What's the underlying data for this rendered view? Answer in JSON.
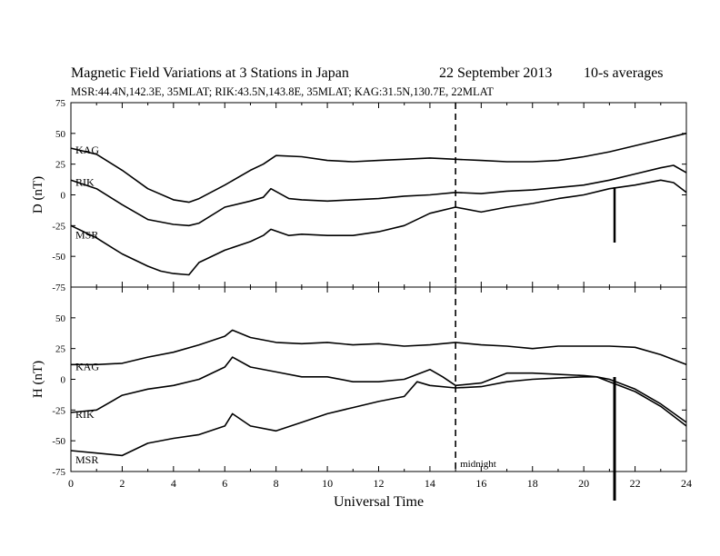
{
  "header": {
    "title": "Magnetic Field Variations at 3 Stations in Japan",
    "date": "22 September 2013",
    "averaging": "10-s averages",
    "stations_line": "MSR:44.4N,142.3E, 35MLAT;  RIK:43.5N,143.8E, 35MLAT;  KAG:31.5N,130.7E, 22MLAT"
  },
  "chart_data": [
    {
      "type": "line",
      "panel": "top",
      "ylabel": "D (nT)",
      "ylim": [
        -75,
        75
      ],
      "yticks": [
        "75",
        "50",
        "25",
        "0",
        "-25",
        "-50",
        "-75"
      ],
      "xlim": [
        0,
        24
      ],
      "series": [
        {
          "name": "KAG",
          "x": [
            0,
            1,
            2,
            3,
            4,
            4.6,
            5,
            6,
            7,
            7.5,
            8,
            9,
            10,
            11,
            12,
            13,
            14,
            15,
            16,
            17,
            18,
            19,
            20,
            21,
            22,
            23,
            24
          ],
          "values": [
            38,
            33,
            20,
            5,
            -4,
            -6,
            -3,
            8,
            20,
            25,
            32,
            31,
            28,
            27,
            28,
            29,
            30,
            29,
            28,
            27,
            27,
            28,
            31,
            35,
            40,
            45,
            50
          ]
        },
        {
          "name": "RIK",
          "x": [
            0,
            1,
            2,
            3,
            4,
            4.6,
            5,
            6,
            7,
            7.5,
            7.8,
            8.5,
            9,
            10,
            11,
            12,
            13,
            14,
            15,
            16,
            17,
            18,
            19,
            20,
            21,
            22,
            23,
            23.5,
            24
          ],
          "values": [
            12,
            5,
            -8,
            -20,
            -24,
            -25,
            -23,
            -10,
            -5,
            -2,
            5,
            -3,
            -4,
            -5,
            -4,
            -3,
            -1,
            0,
            2,
            1,
            3,
            4,
            6,
            8,
            12,
            17,
            22,
            24,
            18
          ]
        },
        {
          "name": "MSR",
          "x": [
            0,
            1,
            2,
            3,
            3.5,
            4,
            4.6,
            5,
            6,
            7,
            7.5,
            7.8,
            8.5,
            9,
            10,
            11,
            12,
            13,
            14,
            15,
            16,
            17,
            18,
            19,
            20,
            21,
            22,
            23,
            23.5,
            24
          ],
          "values": [
            -25,
            -35,
            -48,
            -58,
            -62,
            -64,
            -65,
            -55,
            -45,
            -38,
            -33,
            -28,
            -33,
            -32,
            -33,
            -33,
            -30,
            -25,
            -15,
            -10,
            -14,
            -10,
            -7,
            -3,
            0,
            5,
            8,
            12,
            10,
            2
          ]
        }
      ],
      "annotations": [
        "KAG",
        "RIK",
        "MSR"
      ]
    },
    {
      "type": "line",
      "panel": "bottom",
      "ylabel": "H (nT)",
      "xlabel": "Universal Time",
      "ylim": [
        -75,
        75
      ],
      "yticks": [
        "50",
        "25",
        "0",
        "-25",
        "-50",
        "-75"
      ],
      "xlim": [
        0,
        24
      ],
      "xticks": [
        "0",
        "2",
        "4",
        "6",
        "8",
        "10",
        "12",
        "14",
        "16",
        "18",
        "20",
        "22",
        "24"
      ],
      "series": [
        {
          "name": "KAG",
          "x": [
            0,
            1,
            2,
            3,
            4,
            5,
            6,
            6.3,
            7,
            8,
            9,
            10,
            11,
            12,
            13,
            14,
            15,
            16,
            17,
            18,
            19,
            20,
            21,
            22,
            23,
            24
          ],
          "values": [
            12,
            12,
            13,
            18,
            22,
            28,
            35,
            40,
            34,
            30,
            29,
            30,
            28,
            29,
            27,
            28,
            30,
            28,
            27,
            25,
            27,
            27,
            27,
            26,
            20,
            12
          ]
        },
        {
          "name": "RIK",
          "x": [
            0,
            1,
            2,
            3,
            4,
            5,
            6,
            6.3,
            7,
            8,
            9,
            10,
            11,
            12,
            13,
            14,
            14.5,
            15,
            16,
            17,
            18,
            19,
            20,
            20.5,
            21,
            22,
            23,
            24
          ],
          "values": [
            -27,
            -25,
            -13,
            -8,
            -5,
            0,
            10,
            18,
            10,
            6,
            2,
            2,
            -2,
            -2,
            0,
            8,
            2,
            -5,
            -3,
            5,
            5,
            4,
            3,
            2,
            -2,
            -10,
            -22,
            -38
          ]
        },
        {
          "name": "MSR",
          "x": [
            0,
            1,
            2,
            3,
            4,
            5,
            6,
            6.3,
            7,
            8,
            9,
            10,
            11,
            12,
            13,
            13.5,
            14,
            15,
            16,
            17,
            18,
            19,
            20,
            20.5,
            21,
            22,
            23,
            24
          ],
          "values": [
            -58,
            -60,
            -62,
            -52,
            -48,
            -45,
            -38,
            -28,
            -38,
            -42,
            -35,
            -28,
            -23,
            -18,
            -14,
            -2,
            -5,
            -7,
            -6,
            -2,
            0,
            1,
            2,
            2,
            0,
            -8,
            -20,
            -35
          ]
        }
      ],
      "annotations": [
        "KAG",
        "RIK",
        "MSR"
      ]
    }
  ],
  "markers": {
    "midnight_label": "midnight",
    "midnight_x": 15,
    "spike_x": 21.2
  },
  "styling": {
    "line_color": "#000000",
    "background": "#ffffff"
  }
}
